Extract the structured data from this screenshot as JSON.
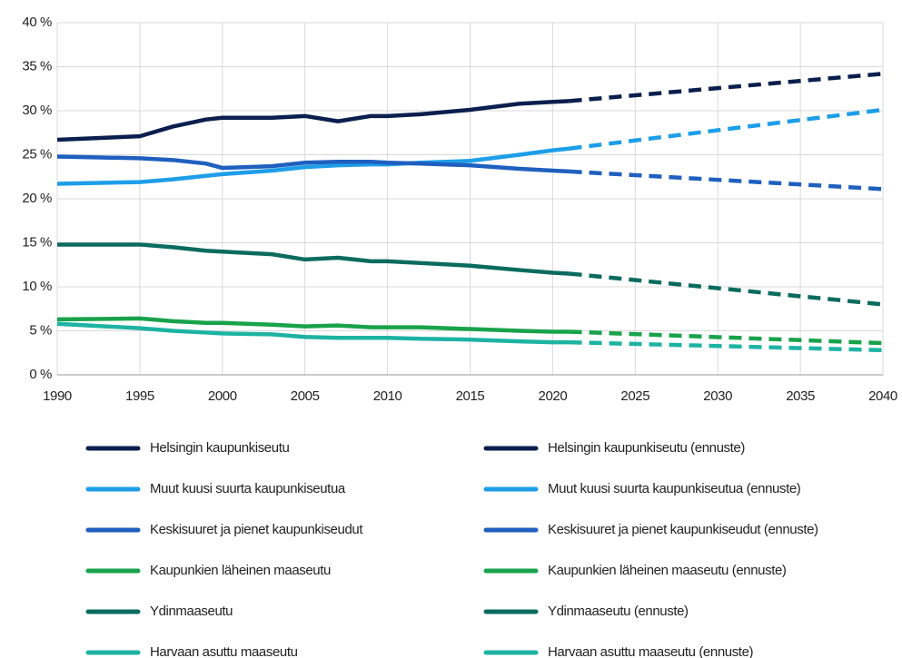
{
  "chart_data": {
    "type": "line",
    "xlim": [
      1990,
      2040
    ],
    "xticks": [
      1990,
      1995,
      2000,
      2005,
      2010,
      2015,
      2020,
      2025,
      2030,
      2035,
      2040
    ],
    "ylim": [
      0,
      40
    ],
    "yticks": [
      {
        "value": 0,
        "label": "0 %"
      },
      {
        "value": 5,
        "label": "5 %"
      },
      {
        "value": 10,
        "label": "10 %"
      },
      {
        "value": 15,
        "label": "15 %"
      },
      {
        "value": 20,
        "label": "20 %"
      },
      {
        "value": 25,
        "label": "25 %"
      },
      {
        "value": 30,
        "label": "30 %"
      },
      {
        "value": 35,
        "label": "35 %"
      },
      {
        "value": 40,
        "label": "40 %"
      }
    ],
    "grid": true,
    "legend": "bottom",
    "series": [
      {
        "name": "Helsingin kaupunkiseutu",
        "color": "#0b1f4e",
        "dashed": false,
        "x": [
          1990,
          1995,
          1997,
          1999,
          2000,
          2003,
          2005,
          2007,
          2009,
          2010,
          2012,
          2015,
          2018,
          2020,
          2021
        ],
        "values": [
          26.7,
          27.1,
          28.2,
          29.0,
          29.2,
          29.2,
          29.4,
          28.8,
          29.4,
          29.4,
          29.6,
          30.1,
          30.8,
          31.0,
          31.1
        ]
      },
      {
        "name": "Muut kuusi suurta kaupunkiseutua",
        "color": "#1e9ee8",
        "dashed": false,
        "x": [
          1990,
          1995,
          1997,
          1999,
          2000,
          2003,
          2005,
          2007,
          2009,
          2010,
          2012,
          2015,
          2018,
          2020,
          2021
        ],
        "values": [
          21.7,
          21.9,
          22.2,
          22.6,
          22.8,
          23.2,
          23.6,
          23.8,
          23.9,
          23.9,
          24.1,
          24.3,
          25.0,
          25.5,
          25.7
        ]
      },
      {
        "name": "Keskisuuret ja pienet kaupunkiseudut",
        "color": "#1f5fbf",
        "dashed": false,
        "x": [
          1990,
          1995,
          1997,
          1999,
          2000,
          2003,
          2005,
          2007,
          2009,
          2010,
          2012,
          2015,
          2018,
          2020,
          2021
        ],
        "values": [
          24.8,
          24.6,
          24.4,
          24.0,
          23.5,
          23.7,
          24.1,
          24.2,
          24.2,
          24.1,
          24.0,
          23.8,
          23.4,
          23.2,
          23.1
        ]
      },
      {
        "name": "Kaupunkien läheinen maaseutu",
        "color": "#18a24a",
        "dashed": false,
        "x": [
          1990,
          1995,
          1997,
          1999,
          2000,
          2003,
          2005,
          2007,
          2009,
          2010,
          2012,
          2015,
          2018,
          2020,
          2021
        ],
        "values": [
          6.3,
          6.4,
          6.1,
          5.9,
          5.9,
          5.7,
          5.5,
          5.6,
          5.4,
          5.4,
          5.4,
          5.2,
          5.0,
          4.9,
          4.9
        ]
      },
      {
        "name": "Ydinmaaseutu",
        "color": "#0a6b5e",
        "dashed": false,
        "x": [
          1990,
          1995,
          1997,
          1999,
          2000,
          2003,
          2005,
          2007,
          2009,
          2010,
          2012,
          2015,
          2018,
          2020,
          2021
        ],
        "values": [
          14.8,
          14.8,
          14.5,
          14.1,
          14.0,
          13.7,
          13.1,
          13.3,
          12.9,
          12.9,
          12.7,
          12.4,
          11.9,
          11.6,
          11.5
        ]
      },
      {
        "name": "Harvaan asuttu maaseutu",
        "color": "#1db3a3",
        "dashed": false,
        "x": [
          1990,
          1995,
          1997,
          1999,
          2000,
          2003,
          2005,
          2007,
          2009,
          2010,
          2012,
          2015,
          2018,
          2020,
          2021
        ],
        "values": [
          5.8,
          5.3,
          5.0,
          4.8,
          4.7,
          4.6,
          4.3,
          4.2,
          4.2,
          4.2,
          4.1,
          4.0,
          3.8,
          3.7,
          3.7
        ]
      },
      {
        "name": "Helsingin kaupunkiseutu (ennuste)",
        "color": "#0b1f4e",
        "dashed": true,
        "x": [
          2021,
          2040
        ],
        "values": [
          31.1,
          34.2
        ]
      },
      {
        "name": "Muut kuusi suurta kaupunkiseutua (ennuste)",
        "color": "#1e9ee8",
        "dashed": true,
        "x": [
          2021,
          2040
        ],
        "values": [
          25.7,
          30.1
        ]
      },
      {
        "name": "Keskisuuret ja pienet kaupunkiseudut (ennuste)",
        "color": "#1f5fbf",
        "dashed": true,
        "x": [
          2021,
          2040
        ],
        "values": [
          23.1,
          21.1
        ]
      },
      {
        "name": "Kaupunkien läheinen maaseutu (ennuste)",
        "color": "#18a24a",
        "dashed": true,
        "x": [
          2021,
          2040
        ],
        "values": [
          4.9,
          3.6
        ]
      },
      {
        "name": "Ydinmaaseutu (ennuste)",
        "color": "#0a6b5e",
        "dashed": true,
        "x": [
          2021,
          2040
        ],
        "values": [
          11.5,
          8.0
        ]
      },
      {
        "name": "Harvaan asuttu maaseutu (ennuste)",
        "color": "#1db3a3",
        "dashed": true,
        "x": [
          2021,
          2040
        ],
        "values": [
          3.7,
          2.8
        ]
      }
    ]
  }
}
